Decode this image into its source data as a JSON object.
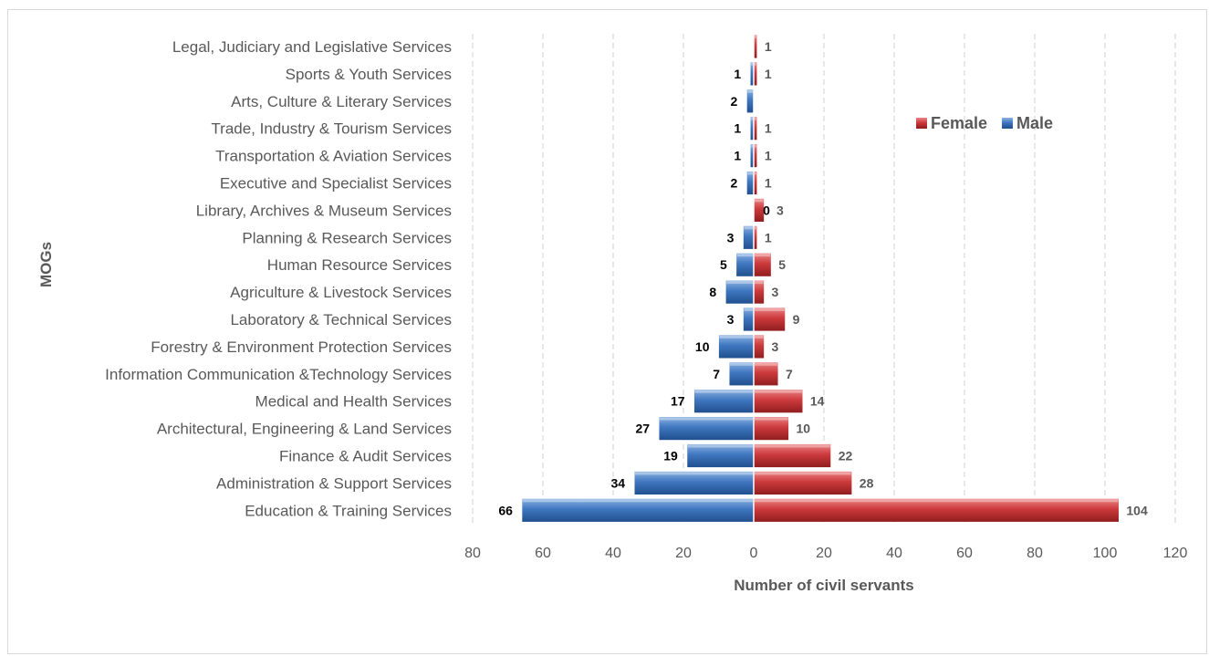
{
  "chart_data": {
    "type": "bar",
    "orientation": "horizontal",
    "layout": "diverging",
    "categories": [
      "Legal, Judiciary and Legislative Services",
      "Sports & Youth Services",
      "Arts, Culture & Literary Services",
      "Trade, Industry & Tourism Services",
      "Transportation & Aviation Services",
      "Executive and Specialist Services",
      "Library, Archives & Museum Services",
      "Planning & Research Services",
      "Human Resource Services",
      "Agriculture & Livestock Services",
      "Laboratory & Technical Services",
      "Forestry & Environment Protection Services",
      "Information Communication &Technology Services",
      "Medical and Health Services",
      "Architectural, Engineering & Land Services",
      "Finance & Audit Services",
      "Administration & Support Services",
      "Education & Training Services"
    ],
    "series": [
      {
        "name": "Male",
        "color": "#3d74bd",
        "direction": "left",
        "values": [
          0,
          1,
          2,
          1,
          1,
          2,
          0,
          3,
          5,
          8,
          3,
          10,
          7,
          17,
          27,
          19,
          34,
          66
        ],
        "labels": [
          "",
          "1",
          "2",
          "1",
          "1",
          "2",
          "0",
          "3",
          "5",
          "8",
          "3",
          "10",
          "7",
          "17",
          "27",
          "19",
          "34",
          "66"
        ]
      },
      {
        "name": "Female",
        "color": "#c93537",
        "direction": "right",
        "values": [
          1,
          1,
          0,
          1,
          1,
          1,
          3,
          1,
          5,
          3,
          9,
          3,
          7,
          14,
          10,
          22,
          28,
          104
        ],
        "labels": [
          "1",
          "1",
          "",
          "1",
          "1",
          "1",
          "3",
          "1",
          "5",
          "3",
          "9",
          "3",
          "7",
          "14",
          "10",
          "22",
          "28",
          "104"
        ]
      }
    ],
    "xlim": [
      -80,
      120
    ],
    "x_ticks": [
      -80,
      -60,
      -40,
      -20,
      0,
      20,
      40,
      60,
      80,
      100,
      120
    ],
    "x_tick_labels": [
      "80",
      "60",
      "40",
      "20",
      "0",
      "20",
      "40",
      "60",
      "80",
      "100",
      "120"
    ],
    "xlabel": "Number of civil servants",
    "ylabel": "MOGs",
    "title": "",
    "grid": "vertical dashed",
    "legend": {
      "position": "top-right",
      "entries": [
        "Female",
        "Male"
      ]
    }
  }
}
